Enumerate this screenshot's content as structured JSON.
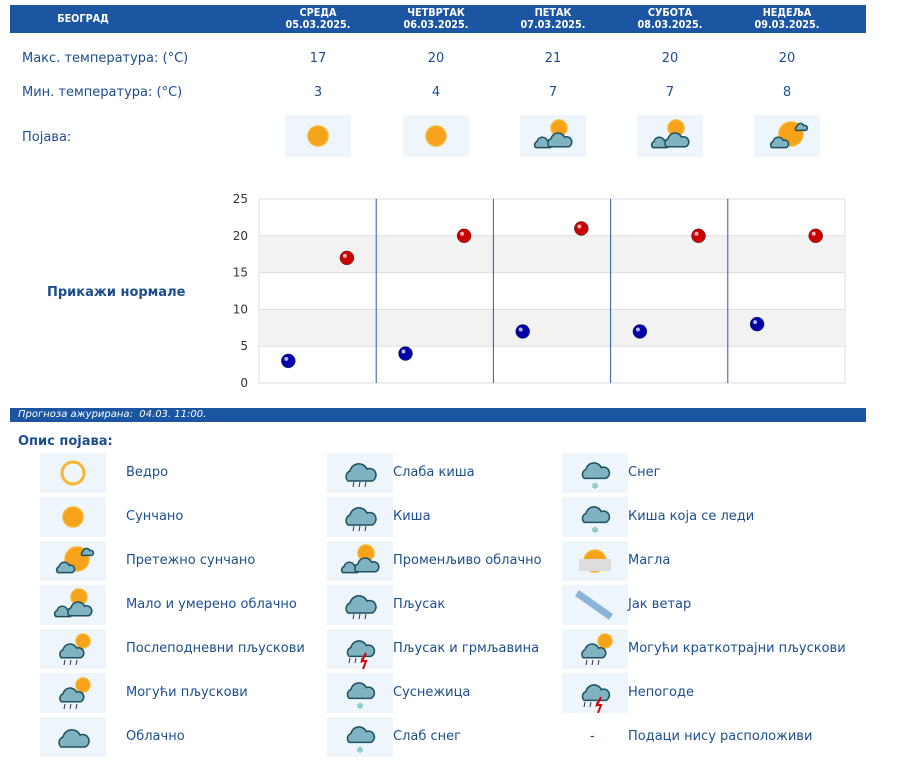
{
  "header": {
    "city": "БЕОГРАД",
    "days": [
      {
        "name": "СРЕДА",
        "date": "05.03.2025.",
        "max": "17",
        "min": "3",
        "icon": "sunny"
      },
      {
        "name": "ЧЕТВРТАК",
        "date": "06.03.2025.",
        "max": "20",
        "min": "4",
        "icon": "sunny"
      },
      {
        "name": "ПЕТАК",
        "date": "07.03.2025.",
        "max": "21",
        "min": "7",
        "icon": "partly-cloudy"
      },
      {
        "name": "СУБОТА",
        "date": "08.03.2025.",
        "max": "20",
        "min": "7",
        "icon": "partly-cloudy"
      },
      {
        "name": "НЕДЕЉА",
        "date": "09.03.2025.",
        "max": "20",
        "min": "8",
        "icon": "mostly-sunny"
      }
    ]
  },
  "rows": {
    "max_label": "Макс. температура: (°C)",
    "min_label": "Мин. температура: (°C)",
    "icon_label": "Појава:"
  },
  "show_normals": "Прикажи нормале",
  "chart_data": {
    "type": "scatter",
    "ylim": [
      0,
      25
    ],
    "yticks": [
      "0",
      "5",
      "10",
      "15",
      "20",
      "25"
    ],
    "grid": true,
    "categories": [
      "05.03.2025.",
      "06.03.2025.",
      "07.03.2025.",
      "08.03.2025.",
      "09.03.2025."
    ],
    "series": [
      {
        "values": [
          17,
          20,
          21,
          20,
          20
        ],
        "color": "#cc0000"
      },
      {
        "values": [
          3,
          4,
          7,
          7,
          8
        ],
        "color": "#0000aa"
      }
    ]
  },
  "updated": "Прогноза ажурирана:  04.03. 11:00.",
  "legend_title": "Опис појава:",
  "legend": [
    [
      {
        "icon": "clear",
        "label": "Ведро"
      },
      {
        "icon": "sunny",
        "label": "Сунчано"
      },
      {
        "icon": "mostly-sunny",
        "label": "Претежно сунчано"
      },
      {
        "icon": "partly-cloudy",
        "label": "Мало и умерено облачно"
      },
      {
        "icon": "afternoon-showers",
        "label": "Послеподневни пљускови"
      },
      {
        "icon": "possible-showers",
        "label": "Могући пљускови"
      },
      {
        "icon": "cloudy",
        "label": "Облачно"
      }
    ],
    [
      {
        "icon": "light-rain",
        "label": "Слаба киша"
      },
      {
        "icon": "rain",
        "label": "Киша"
      },
      {
        "icon": "variable-cloudy",
        "label": "Променљиво облачно"
      },
      {
        "icon": "showers",
        "label": "Пљусак"
      },
      {
        "icon": "thunderstorm",
        "label": "Пљусак и грмљавина"
      },
      {
        "icon": "sleet",
        "label": "Суснежица"
      },
      {
        "icon": "light-snow",
        "label": "Слаб снег"
      }
    ],
    [
      {
        "icon": "snow",
        "label": "Снег"
      },
      {
        "icon": "freezing-rain",
        "label": "Киша која се леди"
      },
      {
        "icon": "fog",
        "label": "Магла"
      },
      {
        "icon": "strong-wind",
        "label": "Јак ветар"
      },
      {
        "icon": "brief-showers",
        "label": "Могући краткотрајни пљускови"
      },
      {
        "icon": "storm",
        "label": "Непогоде"
      },
      {
        "icon": "none",
        "symbol": "-",
        "label": "Подаци нису расположиви"
      }
    ]
  ]
}
